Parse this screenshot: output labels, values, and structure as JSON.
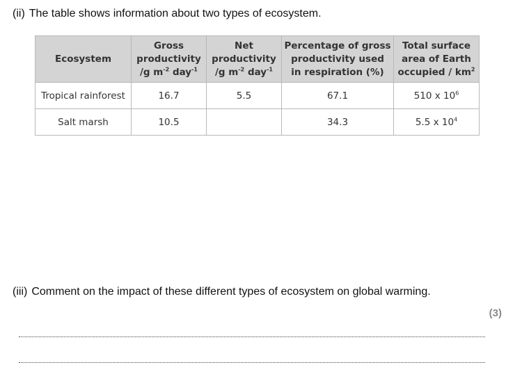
{
  "question_ii": {
    "number": "(ii)",
    "text": "The table shows information about two types of ecosystem."
  },
  "table": {
    "headers": [
      {
        "lines": [
          "Ecosystem"
        ]
      },
      {
        "lines": [
          "Gross",
          "productivity",
          "/g m-2 day-1"
        ]
      },
      {
        "lines": [
          "Net",
          "productivity",
          "/g m-2 day-1"
        ]
      },
      {
        "lines": [
          "Percentage of gross",
          "productivity used",
          "in respiration (%)"
        ]
      },
      {
        "lines": [
          "Total surface",
          "area of Earth",
          "occupied / km2"
        ]
      }
    ],
    "rows": [
      {
        "ecosystem": "Tropical rainforest",
        "gross": "16.7",
        "net": "5.5",
        "respiration_pct": "67.1",
        "area": "510 x 106"
      },
      {
        "ecosystem": "Salt marsh",
        "gross": "10.5",
        "net": "",
        "respiration_pct": "34.3",
        "area": "5.5 x 104"
      }
    ]
  },
  "question_iii": {
    "number": "(iii)",
    "text": "Comment on the impact of these different types of ecosystem on global warming."
  },
  "marks": "(3)"
}
